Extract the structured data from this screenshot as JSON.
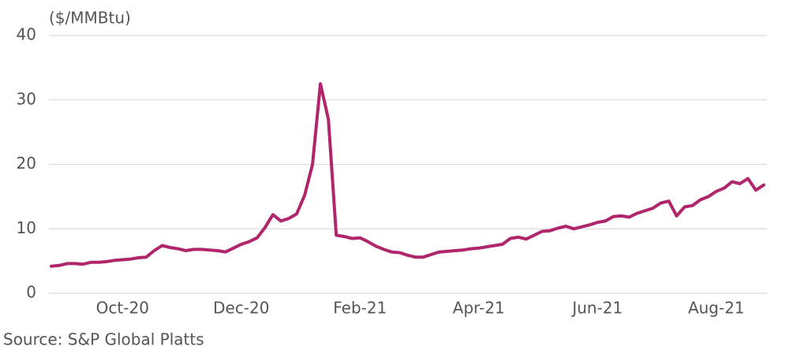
{
  "chart_data": {
    "type": "line",
    "y_axis_label": "($/MMBtu)",
    "source": "Source: S&P Global Platts",
    "categories": [
      null,
      null,
      null,
      null,
      null,
      null,
      null,
      null,
      null,
      "Oct-20",
      null,
      null,
      null,
      null,
      null,
      null,
      null,
      null,
      null,
      null,
      null,
      null,
      null,
      null,
      "Dec-20",
      null,
      null,
      null,
      null,
      null,
      null,
      null,
      null,
      null,
      null,
      null,
      null,
      null,
      null,
      "Feb-21",
      null,
      null,
      null,
      null,
      null,
      null,
      null,
      null,
      null,
      null,
      null,
      null,
      null,
      null,
      "Apr-21",
      null,
      null,
      null,
      null,
      null,
      null,
      null,
      null,
      null,
      null,
      null,
      null,
      null,
      null,
      "Jun-21",
      null,
      null,
      null,
      null,
      null,
      null,
      null,
      null,
      null,
      null,
      null,
      null,
      null,
      null,
      "Aug-21",
      null,
      null,
      null,
      null,
      null,
      null
    ],
    "series": [
      {
        "color": "#b0256b",
        "values": [
          4.2,
          4.3,
          4.6,
          4.6,
          4.5,
          4.8,
          4.8,
          4.9,
          5.1,
          5.2,
          5.3,
          5.5,
          5.6,
          6.6,
          7.4,
          7.1,
          6.9,
          6.6,
          6.8,
          6.8,
          6.7,
          6.6,
          6.4,
          7.0,
          7.6,
          8.0,
          8.6,
          10.2,
          12.2,
          11.2,
          11.6,
          12.3,
          15.2,
          20.0,
          32.5,
          27.0,
          9.0,
          8.8,
          8.5,
          8.6,
          8.0,
          7.3,
          6.8,
          6.4,
          6.3,
          5.9,
          5.6,
          5.6,
          6.0,
          6.4,
          6.5,
          6.6,
          6.7,
          6.9,
          7.0,
          7.2,
          7.4,
          7.6,
          8.5,
          8.7,
          8.4,
          9.0,
          9.6,
          9.7,
          10.1,
          10.4,
          10.0,
          10.3,
          10.6,
          11.0,
          11.2,
          11.9,
          12.0,
          11.8,
          12.4,
          12.8,
          13.2,
          14.0,
          14.3,
          12.0,
          13.4,
          13.6,
          14.5,
          15.0,
          15.8,
          16.3,
          17.3,
          17.0,
          17.8,
          16.0,
          16.8
        ]
      }
    ],
    "ylim": [
      0,
      40
    ],
    "yticks": [
      0,
      10,
      20,
      30,
      40
    ],
    "grid": true
  }
}
